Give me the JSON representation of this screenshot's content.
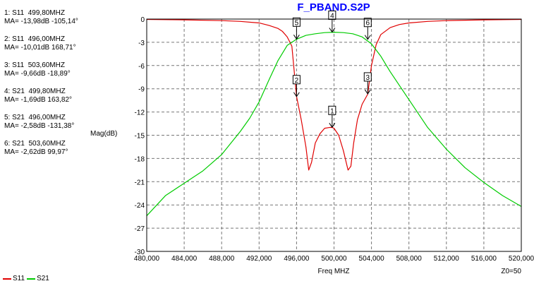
{
  "marker_readouts": [
    {
      "line1": "1: S11  499,80MHZ",
      "line2": "MA= -13,98dB -105,14°"
    },
    {
      "line1": "2: S11  496,00MHZ",
      "line2": "MA= -10,01dB 168,71°"
    },
    {
      "line1": "3: S11  503,60MHZ",
      "line2": "MA= -9,66dB -18,89°"
    },
    {
      "line1": "4: S21  499,80MHZ",
      "line2": "MA= -1,69dB 163,82°"
    },
    {
      "line1": "5: S21  496,00MHZ",
      "line2": "MA= -2,58dB -131,38°"
    },
    {
      "line1": "6: S21  503,60MHZ",
      "line2": "MA= -2,62dB 99,97°"
    }
  ],
  "legend": [
    {
      "name": "S11",
      "color": "#e00000"
    },
    {
      "name": "S21",
      "color": "#00cc00"
    }
  ],
  "chart_data": {
    "type": "line",
    "title": "F_PBAND.S2P",
    "title_color": "#0000ff",
    "xlabel": "Freq MHZ",
    "ylabel": "Mag(dB)",
    "z0_label": "Z0=50",
    "xlim": [
      480,
      520
    ],
    "ylim": [
      -30,
      0
    ],
    "grid": true,
    "x_ticks": [
      480,
      484,
      488,
      492,
      496,
      500,
      504,
      508,
      512,
      516,
      520
    ],
    "x_tick_labels": [
      "480,000",
      "484,000",
      "488,000",
      "492,000",
      "496,000",
      "500,000",
      "504,000",
      "508,000",
      "512,000",
      "516,000",
      "520,000"
    ],
    "y_ticks": [
      0,
      -3,
      -6,
      -9,
      -12,
      -15,
      -18,
      -21,
      -24,
      -27,
      -30
    ],
    "y_tick_labels": [
      "0",
      "-3",
      "-6",
      "-9",
      "-12",
      "-15",
      "-18",
      "-21",
      "-24",
      "-27",
      "-30"
    ],
    "legend_position": "bottom-left",
    "series": [
      {
        "name": "S11",
        "color": "#e00000",
        "x": [
          480,
          484,
          488,
          490,
          492,
          493,
          494,
          494.5,
          495,
          495.5,
          496,
          496.5,
          497,
          497.3,
          497.6,
          498,
          498.5,
          499,
          499.5,
          499.8,
          500,
          500.5,
          501,
          501.5,
          501.8,
          502.1,
          502.5,
          503,
          503.6,
          504,
          504.5,
          505,
          506,
          507,
          508,
          510,
          512,
          516,
          520
        ],
        "values": [
          -0.05,
          -0.1,
          -0.2,
          -0.3,
          -0.5,
          -0.8,
          -1.2,
          -1.6,
          -2.3,
          -3.5,
          -10.0,
          -13.0,
          -16.5,
          -19.5,
          -18.5,
          -16.0,
          -14.8,
          -14.1,
          -14.0,
          -14.0,
          -14.1,
          -15.0,
          -17.0,
          -19.5,
          -19.0,
          -16.0,
          -13.0,
          -11.0,
          -9.7,
          -6.0,
          -3.3,
          -2.0,
          -1.1,
          -0.7,
          -0.5,
          -0.3,
          -0.2,
          -0.1,
          -0.05
        ]
      },
      {
        "name": "S21",
        "color": "#00cc00",
        "x": [
          480,
          482,
          484,
          486,
          488,
          490,
          491,
          492,
          493,
          494,
          495,
          496,
          497,
          498,
          499,
          500,
          501,
          502,
          503,
          504,
          505,
          506,
          507,
          508,
          509,
          510,
          512,
          514,
          516,
          518,
          520
        ],
        "values": [
          -25.4,
          -22.8,
          -21.2,
          -19.6,
          -17.5,
          -14.5,
          -12.8,
          -10.7,
          -8.0,
          -5.4,
          -3.4,
          -2.6,
          -2.1,
          -1.9,
          -1.75,
          -1.7,
          -1.75,
          -1.9,
          -2.3,
          -3.2,
          -4.8,
          -6.8,
          -8.6,
          -10.4,
          -12.2,
          -14.0,
          -16.8,
          -19.2,
          -21.1,
          -22.8,
          -24.2
        ]
      }
    ],
    "markers": [
      {
        "label": "1",
        "series": "S11",
        "x": 499.8,
        "y": -13.98
      },
      {
        "label": "2",
        "series": "S11",
        "x": 496.0,
        "y": -10.01
      },
      {
        "label": "3",
        "series": "S11",
        "x": 503.6,
        "y": -9.66
      },
      {
        "label": "4",
        "series": "S21",
        "x": 499.8,
        "y": -1.69
      },
      {
        "label": "5",
        "series": "S21",
        "x": 496.0,
        "y": -2.58
      },
      {
        "label": "6",
        "series": "S21",
        "x": 503.6,
        "y": -2.62
      }
    ]
  }
}
